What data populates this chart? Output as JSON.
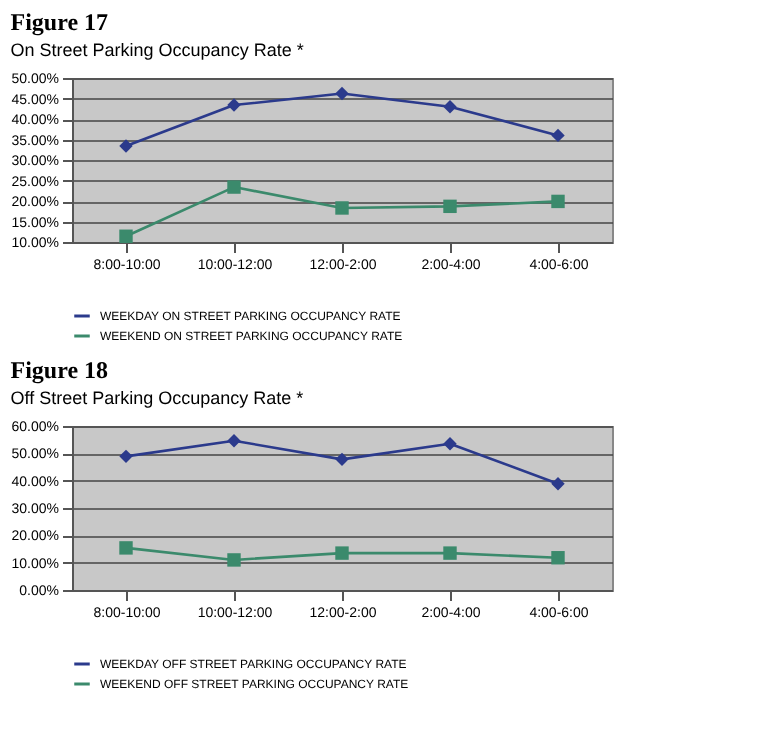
{
  "chart_data": [
    {
      "type": "line",
      "title": "Figure 17",
      "subtitle": "On Street Parking Occupancy Rate *",
      "categories": [
        "8:00-10:00",
        "10:00-12:00",
        "12:00-2:00",
        "2:00-4:00",
        "4:00-6:00"
      ],
      "series": [
        {
          "name": "WEEKDAY ON STREET PARKING OCCUPANCY RATE",
          "color": "#2b3a8c",
          "marker": "diamond",
          "values": [
            33.4,
            43.4,
            46.2,
            43.0,
            36.0
          ]
        },
        {
          "name": "WEEKEND ON STREET PARKING OCCUPANCY RATE",
          "color": "#3b8a6c",
          "marker": "square",
          "values": [
            11.4,
            23.4,
            18.3,
            18.7,
            19.9
          ]
        }
      ],
      "ylim": [
        10,
        50
      ],
      "yticks": [
        {
          "value": 10,
          "label": "10.00%"
        },
        {
          "value": 15,
          "label": "15.00%"
        },
        {
          "value": 20,
          "label": "20.00%"
        },
        {
          "value": 25,
          "label": "25.00%"
        },
        {
          "value": 30,
          "label": "30.00%"
        },
        {
          "value": 35,
          "label": "35.00%"
        },
        {
          "value": 40,
          "label": "40.00%"
        },
        {
          "value": 45,
          "label": "45.00%"
        },
        {
          "value": 50,
          "label": "50.00%"
        }
      ],
      "grid": "y",
      "legend": "bottom"
    },
    {
      "type": "line",
      "title": "Figure 18",
      "subtitle": "Off Street Parking Occupancy Rate *",
      "categories": [
        "8:00-10:00",
        "10:00-12:00",
        "12:00-2:00",
        "2:00-4:00",
        "4:00-6:00"
      ],
      "series": [
        {
          "name": "WEEKDAY OFF STREET PARKING OCCUPANCY RATE",
          "color": "#2b3a8c",
          "marker": "diamond",
          "values": [
            48.9,
            54.6,
            47.8,
            53.5,
            38.9
          ]
        },
        {
          "name": "WEEKEND OFF STREET PARKING OCCUPANCY RATE",
          "color": "#3b8a6c",
          "marker": "square",
          "values": [
            15.4,
            11.0,
            13.5,
            13.5,
            11.8
          ]
        }
      ],
      "ylim": [
        0,
        60
      ],
      "yticks": [
        {
          "value": 0,
          "label": "0.00%"
        },
        {
          "value": 10,
          "label": "10.00%"
        },
        {
          "value": 20,
          "label": "20.00%"
        },
        {
          "value": 30,
          "label": "30.00%"
        },
        {
          "value": 40,
          "label": "40.00%"
        },
        {
          "value": 50,
          "label": "50.00%"
        },
        {
          "value": 60,
          "label": "60.00%"
        }
      ],
      "grid": "y",
      "legend": "bottom"
    }
  ]
}
